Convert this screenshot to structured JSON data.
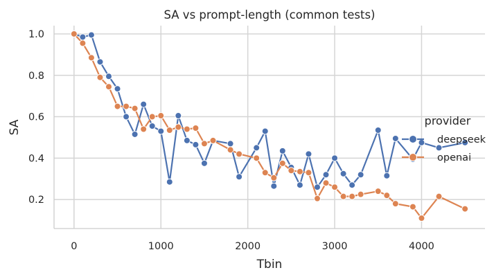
{
  "chart_data": {
    "type": "line",
    "title": "SA vs prompt-length (common tests)",
    "xlabel": "Tbin",
    "ylabel": "SA",
    "xlim": [
      -230,
      4730
    ],
    "ylim": [
      0.06,
      1.04
    ],
    "xticks": [
      0,
      1000,
      2000,
      3000,
      4000
    ],
    "xtick_labels": [
      "0",
      "1000",
      "2000",
      "3000",
      "4000"
    ],
    "yticks": [
      0.2,
      0.4,
      0.6,
      0.8,
      1.0
    ],
    "ytick_labels": [
      "0.2",
      "0.4",
      "0.6",
      "0.8",
      "1.0"
    ],
    "grid": true,
    "legend": {
      "title": "provider",
      "placement": "center-right"
    },
    "series": [
      {
        "name": "deepseek",
        "color": "#4c72b0",
        "x": [
          0,
          100,
          200,
          300,
          400,
          500,
          600,
          700,
          800,
          900,
          1000,
          1100,
          1200,
          1300,
          1400,
          1500,
          1600,
          1800,
          1900,
          2100,
          2200,
          2300,
          2400,
          2500,
          2600,
          2700,
          2800,
          2900,
          3000,
          3100,
          3200,
          3300,
          3500,
          3600,
          3700,
          3900,
          4000,
          4200,
          4500
        ],
        "y": [
          1.0,
          0.985,
          0.995,
          0.865,
          0.795,
          0.735,
          0.6,
          0.515,
          0.66,
          0.555,
          0.53,
          0.285,
          0.605,
          0.485,
          0.465,
          0.375,
          0.485,
          0.47,
          0.31,
          0.45,
          0.53,
          0.265,
          0.435,
          0.355,
          0.27,
          0.42,
          0.26,
          0.32,
          0.4,
          0.325,
          0.27,
          0.32,
          0.535,
          0.315,
          0.495,
          0.395,
          0.475,
          0.45,
          0.475
        ]
      },
      {
        "name": "openai",
        "color": "#dd8452",
        "x": [
          0,
          100,
          200,
          300,
          400,
          500,
          600,
          700,
          800,
          900,
          1000,
          1100,
          1200,
          1300,
          1400,
          1500,
          1600,
          1800,
          1900,
          2100,
          2200,
          2300,
          2400,
          2500,
          2600,
          2700,
          2800,
          2900,
          3000,
          3100,
          3200,
          3300,
          3500,
          3600,
          3700,
          3900,
          4000,
          4200,
          4500
        ],
        "y": [
          1.0,
          0.955,
          0.885,
          0.79,
          0.745,
          0.65,
          0.65,
          0.64,
          0.54,
          0.6,
          0.605,
          0.535,
          0.55,
          0.54,
          0.545,
          0.47,
          0.485,
          0.44,
          0.42,
          0.4,
          0.33,
          0.305,
          0.375,
          0.34,
          0.335,
          0.33,
          0.205,
          0.28,
          0.26,
          0.215,
          0.215,
          0.225,
          0.24,
          0.22,
          0.18,
          0.165,
          0.11,
          0.215,
          0.155
        ]
      }
    ]
  }
}
